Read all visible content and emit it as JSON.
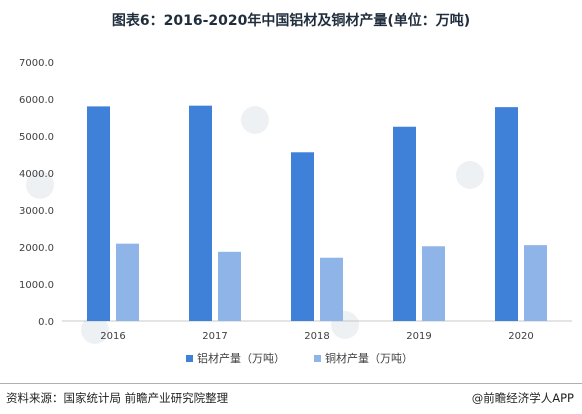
{
  "title": "图表6：2016-2020年中国铝材及铜材产量(单位：万吨)",
  "source": "资料来源：国家统计局 前瞻产业研究院整理",
  "brand": "@前瞻经济学人APP",
  "colors": {
    "aluminum": "#3f80d8",
    "copper": "#8fb5e8"
  },
  "chart_data": {
    "type": "bar",
    "categories": [
      "2016",
      "2017",
      "2018",
      "2019",
      "2020"
    ],
    "series": [
      {
        "name": "铝材产量（万吨）",
        "values": [
          5800,
          5820,
          4560,
          5250,
          5780
        ]
      },
      {
        "name": "铜材产量（万吨）",
        "values": [
          2090,
          1870,
          1710,
          2020,
          2050
        ]
      }
    ],
    "ylim": [
      0,
      7000
    ],
    "yticks": [
      "0.0",
      "1000.0",
      "2000.0",
      "3000.0",
      "4000.0",
      "5000.0",
      "6000.0",
      "7000.0"
    ],
    "legend_position": "bottom",
    "grid": false
  }
}
